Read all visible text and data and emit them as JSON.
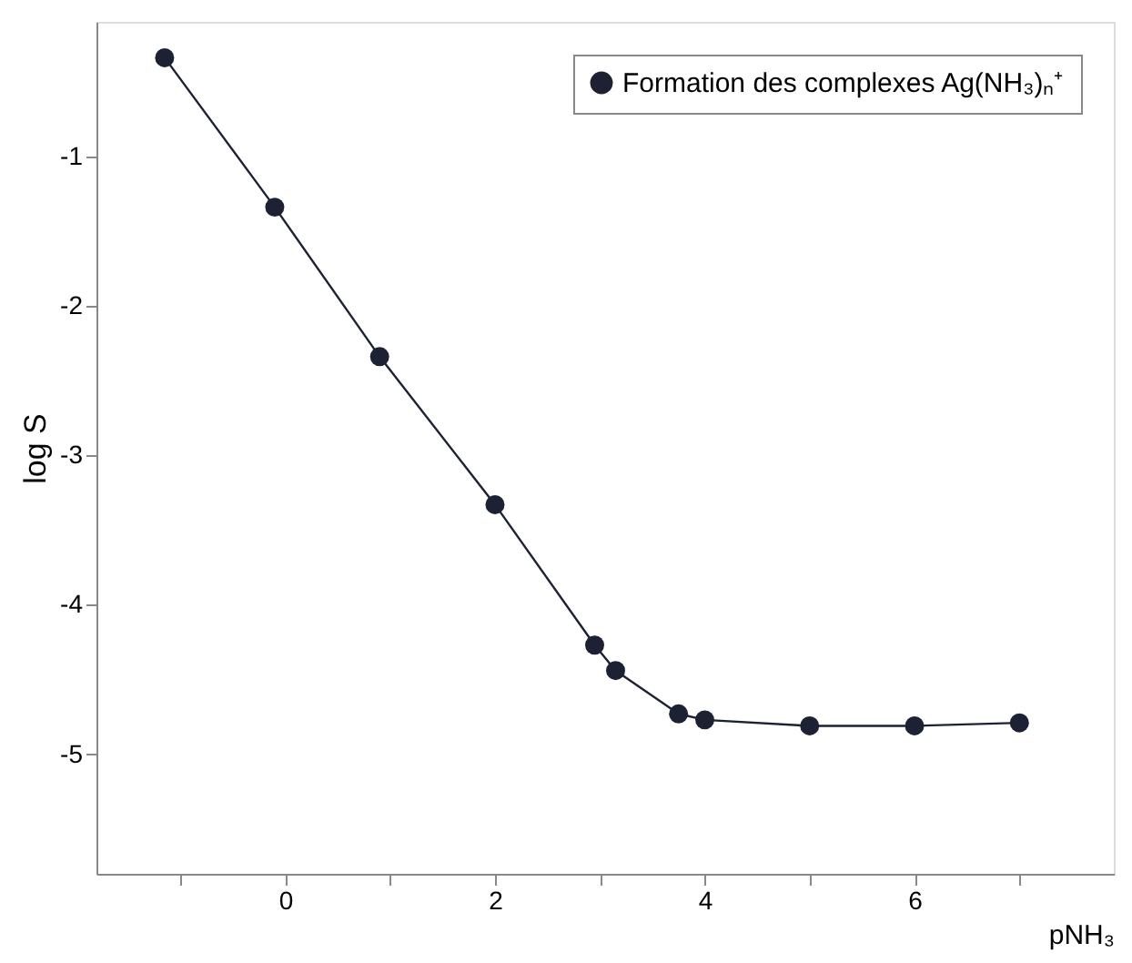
{
  "chart_data": {
    "type": "line",
    "xlabel": "pNH₃",
    "ylabel": "log S",
    "x": [
      -1.15,
      -0.1,
      0.9,
      2,
      2.95,
      3.15,
      3.75,
      4,
      5,
      6,
      7
    ],
    "series": [
      {
        "name": "Formation des complexes Ag(NH₃)ₙ⁺",
        "color": "#1c2233",
        "values": [
          -0.34,
          -1.34,
          -2.34,
          -3.33,
          -4.27,
          -4.44,
          -4.73,
          -4.77,
          -4.81,
          -4.81,
          -4.79
        ]
      }
    ],
    "xlim": [
      -1.8,
      7.9
    ],
    "ylim": [
      -5.8,
      -0.1
    ],
    "xticks": [
      {
        "value": -1,
        "label": null
      },
      0,
      {
        "value": 1,
        "label": null
      },
      2,
      {
        "value": 3,
        "label": null
      },
      4,
      {
        "value": 5,
        "label": null
      },
      6,
      {
        "value": 7,
        "label": null
      }
    ],
    "yticks": [
      -5,
      -4,
      -3,
      -2,
      -1
    ],
    "marker": "circle",
    "line_style": "solid",
    "legend": "top right",
    "grid": false
  }
}
